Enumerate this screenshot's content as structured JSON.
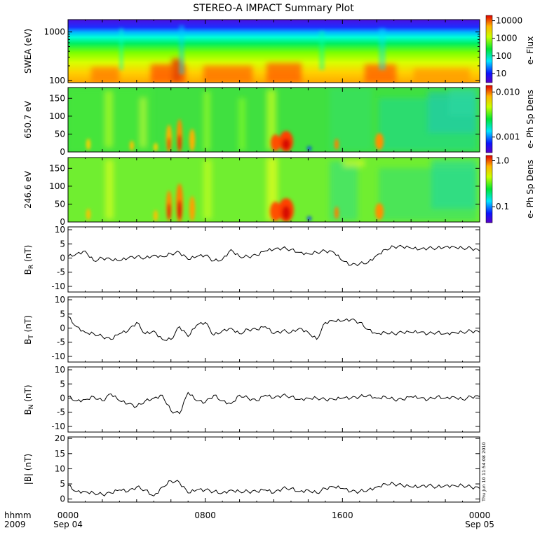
{
  "title": "STEREO-A IMPACT Summary Plot",
  "footer": {
    "left_line1": "hhmm",
    "left_line2": "2009",
    "tick_top": [
      "0000",
      "0800",
      "1600",
      "0000"
    ],
    "tick_bottom": [
      "Sep 04",
      "",
      "",
      "Sep 05"
    ]
  },
  "timestamp": "Thu Jun 10 11:54:08 2010",
  "chart_data": [
    {
      "type": "heatmap",
      "ylabel": "SWEA (eV)",
      "yscale": "log",
      "yticks": [
        "1000",
        "100"
      ],
      "colorbar_ticks": [
        "10000",
        "1000",
        "100",
        "10"
      ],
      "colorbar_label": "e- Flux",
      "ylim": [
        90,
        1800
      ],
      "colorbar_range": [
        3,
        20000
      ]
    },
    {
      "type": "heatmap",
      "ylabel": "650.7 eV",
      "yticks": [
        "150",
        "100",
        "50",
        "0"
      ],
      "ylim": [
        0,
        180
      ],
      "colorbar_ticks": [
        "0.010",
        "0.001"
      ],
      "colorbar_label": "e- Ph Sp Dens"
    },
    {
      "type": "heatmap",
      "ylabel": "246.6 eV",
      "yticks": [
        "150",
        "100",
        "50",
        "0"
      ],
      "ylim": [
        0,
        180
      ],
      "colorbar_ticks": [
        "1.0",
        "0.1"
      ],
      "colorbar_label": "e- Ph Sp Dens"
    },
    {
      "type": "line",
      "ylabel": "B_R (nT)",
      "ylim": [
        -12,
        11
      ],
      "yticks": [
        "10",
        "5",
        "0",
        "-5",
        "-10"
      ],
      "x_hours": [
        0,
        0.5,
        1,
        1.5,
        2,
        2.5,
        3,
        3.5,
        4,
        4.5,
        5,
        5.5,
        6,
        6.5,
        7,
        7.5,
        8,
        8.5,
        9,
        9.5,
        10,
        10.5,
        11,
        11.5,
        12,
        12.5,
        13,
        13.5,
        14,
        14.5,
        15,
        15.5,
        16,
        16.5,
        17,
        17.5,
        18,
        18.5,
        19,
        19.5,
        20,
        20.5,
        21,
        21.5,
        22,
        22.5,
        23,
        23.5,
        24
      ],
      "values": [
        0.5,
        1.5,
        2.5,
        -1,
        0,
        -0.5,
        -1,
        0,
        0.5,
        0,
        1,
        0.5,
        1.5,
        2,
        -0.5,
        0.5,
        1,
        -1,
        -0.5,
        3,
        0.5,
        0.5,
        1,
        2.5,
        3,
        3.5,
        3,
        2,
        1.5,
        2,
        2.5,
        2,
        -1,
        -2.5,
        -2,
        -1.5,
        1,
        3,
        4,
        4,
        3.5,
        3,
        3.5,
        3.5,
        4,
        4,
        3.5,
        3.5,
        2.5
      ]
    },
    {
      "type": "line",
      "ylabel": "B_T (nT)",
      "ylim": [
        -12,
        11
      ],
      "yticks": [
        "10",
        "5",
        "0",
        "-5",
        "-10"
      ],
      "x_hours": [
        0,
        0.5,
        1,
        1.5,
        2,
        2.5,
        3,
        3.5,
        4,
        4.5,
        5,
        5.5,
        6,
        6.5,
        7,
        7.5,
        8,
        8.5,
        9,
        9.5,
        10,
        10.5,
        11,
        11.5,
        12,
        12.5,
        13,
        13.5,
        14,
        14.5,
        15,
        15.5,
        16,
        16.5,
        17,
        17.5,
        18,
        18.5,
        19,
        19.5,
        20,
        20.5,
        21,
        21.5,
        22,
        22.5,
        23,
        23.5,
        24
      ],
      "values": [
        4,
        0.5,
        -1.5,
        -2,
        -3,
        -4,
        -2,
        -1,
        2,
        -2,
        -1,
        -4,
        -4,
        0.5,
        -3,
        1,
        2,
        -2.5,
        -1,
        0,
        -2,
        -0.5,
        -0.5,
        0.5,
        -2,
        -1,
        -1.5,
        0,
        -1.5,
        -4,
        2,
        2.5,
        2.5,
        3,
        2,
        -0.5,
        -2,
        -1.5,
        -2,
        -1.5,
        -1.5,
        -1.5,
        -2,
        -1.5,
        -2,
        -1.5,
        -1.5,
        -1,
        -1.5
      ]
    },
    {
      "type": "line",
      "ylabel": "B_N (nT)",
      "ylim": [
        -12,
        11
      ],
      "yticks": [
        "10",
        "5",
        "0",
        "-5",
        "-10"
      ],
      "x_hours": [
        0,
        0.5,
        1,
        1.5,
        2,
        2.5,
        3,
        3.5,
        4,
        4.5,
        5,
        5.5,
        6,
        6.5,
        7,
        7.5,
        8,
        8.5,
        9,
        9.5,
        10,
        10.5,
        11,
        11.5,
        12,
        12.5,
        13,
        13.5,
        14,
        14.5,
        15,
        15.5,
        16,
        16.5,
        17,
        17.5,
        18,
        18.5,
        19,
        19.5,
        20,
        20.5,
        21,
        21.5,
        22,
        22.5,
        23,
        23.5,
        24
      ],
      "values": [
        0.5,
        -1,
        -0.5,
        0.5,
        -1,
        1.5,
        -1,
        -2,
        -3,
        -1,
        0,
        1,
        -4.5,
        -5.5,
        2,
        -1,
        -1.5,
        1,
        -1,
        -2,
        1,
        0,
        -1,
        1,
        0,
        1,
        0.5,
        -0.5,
        0,
        0,
        -0.5,
        -0.5,
        0,
        0,
        0.5,
        1,
        0,
        0.5,
        -0.5,
        -0.5,
        0.5,
        0,
        -0.5,
        0.5,
        0,
        0.5,
        -0.5,
        0.5,
        0.5
      ]
    },
    {
      "type": "line",
      "ylabel": "|B| (nT)",
      "ylim": [
        -1,
        20.5
      ],
      "yticks": [
        "20",
        "15",
        "10",
        "5",
        "0"
      ],
      "x_hours": [
        0,
        0.5,
        1,
        1.5,
        2,
        2.5,
        3,
        3.5,
        4,
        4.5,
        5,
        5.5,
        6,
        6.5,
        7,
        7.5,
        8,
        8.5,
        9,
        9.5,
        10,
        10.5,
        11,
        11.5,
        12,
        12.5,
        13,
        13.5,
        14,
        14.5,
        15,
        15.5,
        16,
        16.5,
        17,
        17.5,
        18,
        18.5,
        19,
        19.5,
        20,
        20.5,
        21,
        21.5,
        22,
        22.5,
        23,
        23.5,
        24
      ],
      "values": [
        4.5,
        2.5,
        2.5,
        2,
        1.5,
        2,
        3,
        2.5,
        4,
        3,
        1,
        4,
        6,
        5.5,
        2,
        3,
        3,
        2.5,
        2,
        3,
        2.5,
        2.5,
        2.5,
        3,
        2,
        3.5,
        3.5,
        2.5,
        3,
        2,
        3.5,
        4,
        3.5,
        2.5,
        2.5,
        3,
        4,
        5,
        5,
        4.5,
        4,
        4,
        4.5,
        4,
        4.5,
        4.5,
        4.5,
        4,
        3.5
      ]
    }
  ]
}
